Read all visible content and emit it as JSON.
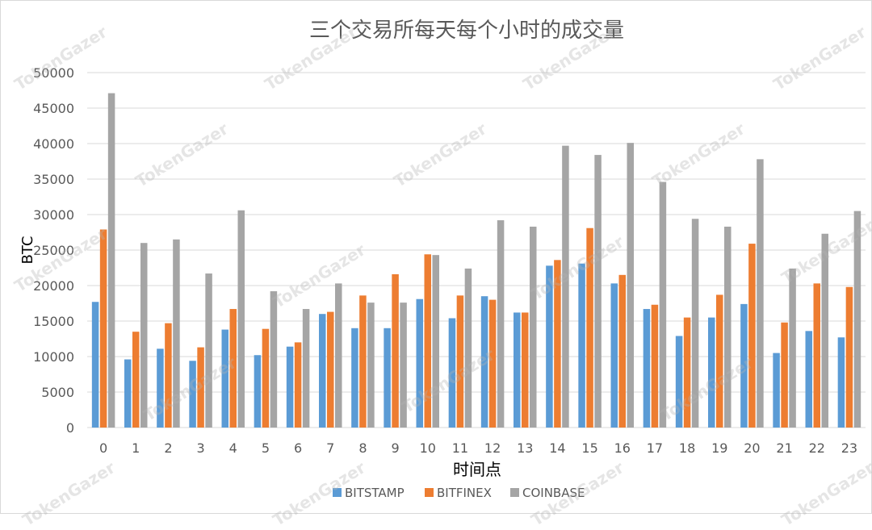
{
  "watermark": "TokenGazer",
  "chart_data": {
    "type": "bar",
    "title": "三个交易所每天每个小时的成交量",
    "xlabel": "时间点",
    "ylabel": "BTC",
    "ylim": [
      0,
      50000
    ],
    "ytick_step": 5000,
    "grid": true,
    "legend_position": "bottom",
    "categories": [
      "0",
      "1",
      "2",
      "3",
      "4",
      "5",
      "6",
      "7",
      "8",
      "9",
      "10",
      "11",
      "12",
      "13",
      "14",
      "15",
      "16",
      "17",
      "18",
      "19",
      "20",
      "21",
      "22",
      "23"
    ],
    "series": [
      {
        "name": "BITSTAMP",
        "color": "#5b9bd5",
        "values": [
          17700,
          9600,
          11100,
          9400,
          13800,
          10200,
          11400,
          16000,
          14000,
          14000,
          18100,
          15400,
          18500,
          16200,
          22800,
          23100,
          20300,
          16700,
          12900,
          15500,
          17400,
          10500,
          13600,
          12700
        ]
      },
      {
        "name": "BITFINEX",
        "color": "#ed7d31",
        "values": [
          27900,
          13500,
          14700,
          11300,
          16700,
          13900,
          12000,
          16300,
          18600,
          21600,
          24400,
          18600,
          18000,
          16200,
          23600,
          28100,
          21500,
          17300,
          15500,
          18700,
          25900,
          14800,
          20300,
          19800
        ]
      },
      {
        "name": "COINBASE",
        "color": "#a5a5a5",
        "values": [
          47100,
          26000,
          26500,
          21700,
          30600,
          19200,
          16700,
          20300,
          17600,
          17600,
          24300,
          22400,
          29200,
          28300,
          39700,
          38400,
          40100,
          34600,
          29400,
          28300,
          37800,
          22400,
          27300,
          30500
        ]
      }
    ]
  }
}
